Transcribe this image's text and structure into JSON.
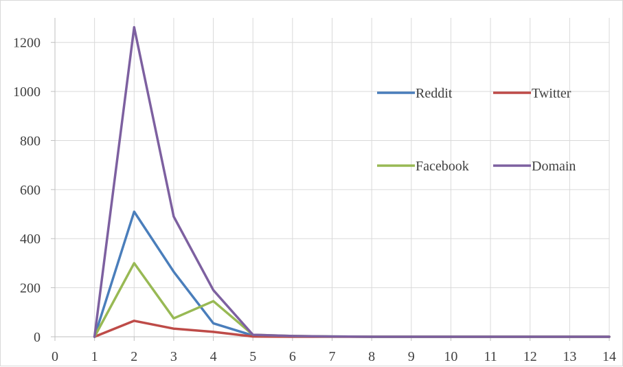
{
  "chart_data": {
    "type": "line",
    "title": "",
    "xlabel": "",
    "ylabel": "",
    "x": [
      1,
      2,
      3,
      4,
      5,
      6,
      7,
      8,
      9,
      10,
      11,
      12,
      13,
      14
    ],
    "x_ticks": [
      0,
      1,
      2,
      3,
      4,
      5,
      6,
      7,
      8,
      9,
      10,
      11,
      12,
      13,
      14
    ],
    "y_ticks": [
      0,
      200,
      400,
      600,
      800,
      1000,
      1200
    ],
    "xlim": [
      0,
      14
    ],
    "ylim": [
      0,
      1300
    ],
    "grid": "vertical and horizontal",
    "legend_position": "inside right, 2x2",
    "series": [
      {
        "name": "Reddit",
        "color": "#4a7ebb",
        "values": [
          0,
          510,
          265,
          55,
          5,
          2,
          1,
          0,
          0,
          0,
          0,
          0,
          0,
          0
        ]
      },
      {
        "name": "Twitter",
        "color": "#be4b48",
        "values": [
          0,
          65,
          33,
          20,
          1,
          0,
          0,
          0,
          0,
          0,
          0,
          0,
          0,
          0
        ]
      },
      {
        "name": "Facebook",
        "color": "#98b954",
        "values": [
          0,
          300,
          75,
          145,
          8,
          3,
          1,
          0,
          0,
          0,
          0,
          0,
          0,
          0
        ]
      },
      {
        "name": "Domain",
        "color": "#7d60a0",
        "values": [
          0,
          1262,
          490,
          190,
          8,
          3,
          1,
          0,
          0,
          0,
          0,
          0,
          0,
          0
        ]
      }
    ]
  }
}
